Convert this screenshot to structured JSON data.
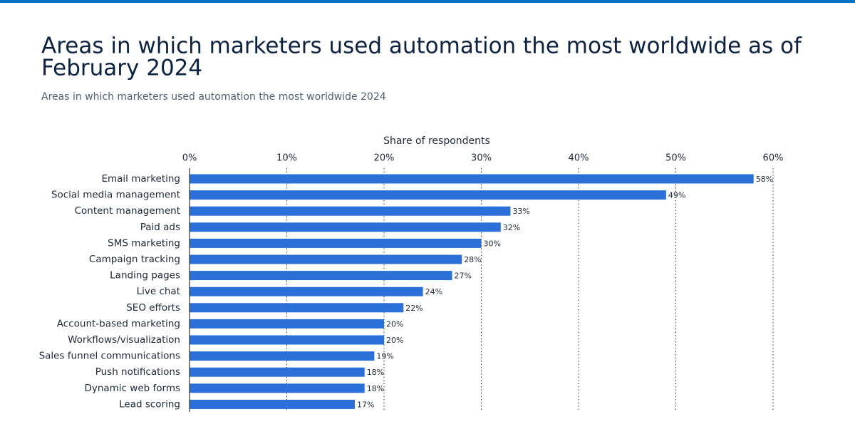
{
  "chart_data": {
    "type": "bar",
    "orientation": "horizontal",
    "title": [
      "Areas in which marketers used automation the most worldwide as of",
      "February 2024"
    ],
    "subtitle": "Areas in which marketers used automation the most worldwide 2024",
    "x_label": "Share of respondents",
    "categories": [
      "Email marketing",
      "Social media management",
      "Content management",
      "Paid ads",
      "SMS marketing",
      "Campaign tracking",
      "Landing pages",
      "Live chat",
      "SEO efforts",
      "Account-based marketing",
      "Workflows/visualization",
      "Sales funnel communications",
      "Push notifications",
      "Dynamic web forms",
      "Lead scoring"
    ],
    "values": [
      58,
      49,
      33,
      32,
      30,
      28,
      27,
      24,
      22,
      20,
      20,
      19,
      18,
      18,
      17
    ],
    "value_labels": [
      "58%",
      "49%",
      "33%",
      "32%",
      "30%",
      "28%",
      "27%",
      "24%",
      "22%",
      "20%",
      "20%",
      "19%",
      "18%",
      "18%",
      "17%"
    ],
    "color": "#2a70d8",
    "xlim": [
      0,
      60
    ],
    "xticks": [
      {
        "value": 0,
        "label": "0%"
      },
      {
        "value": 10,
        "label": "10%"
      },
      {
        "value": 20,
        "label": "20%"
      },
      {
        "value": 30,
        "label": "30%"
      },
      {
        "value": 40,
        "label": "40%"
      },
      {
        "value": 50,
        "label": "50%"
      },
      {
        "value": 60,
        "label": "60%"
      }
    ],
    "grid": true
  }
}
